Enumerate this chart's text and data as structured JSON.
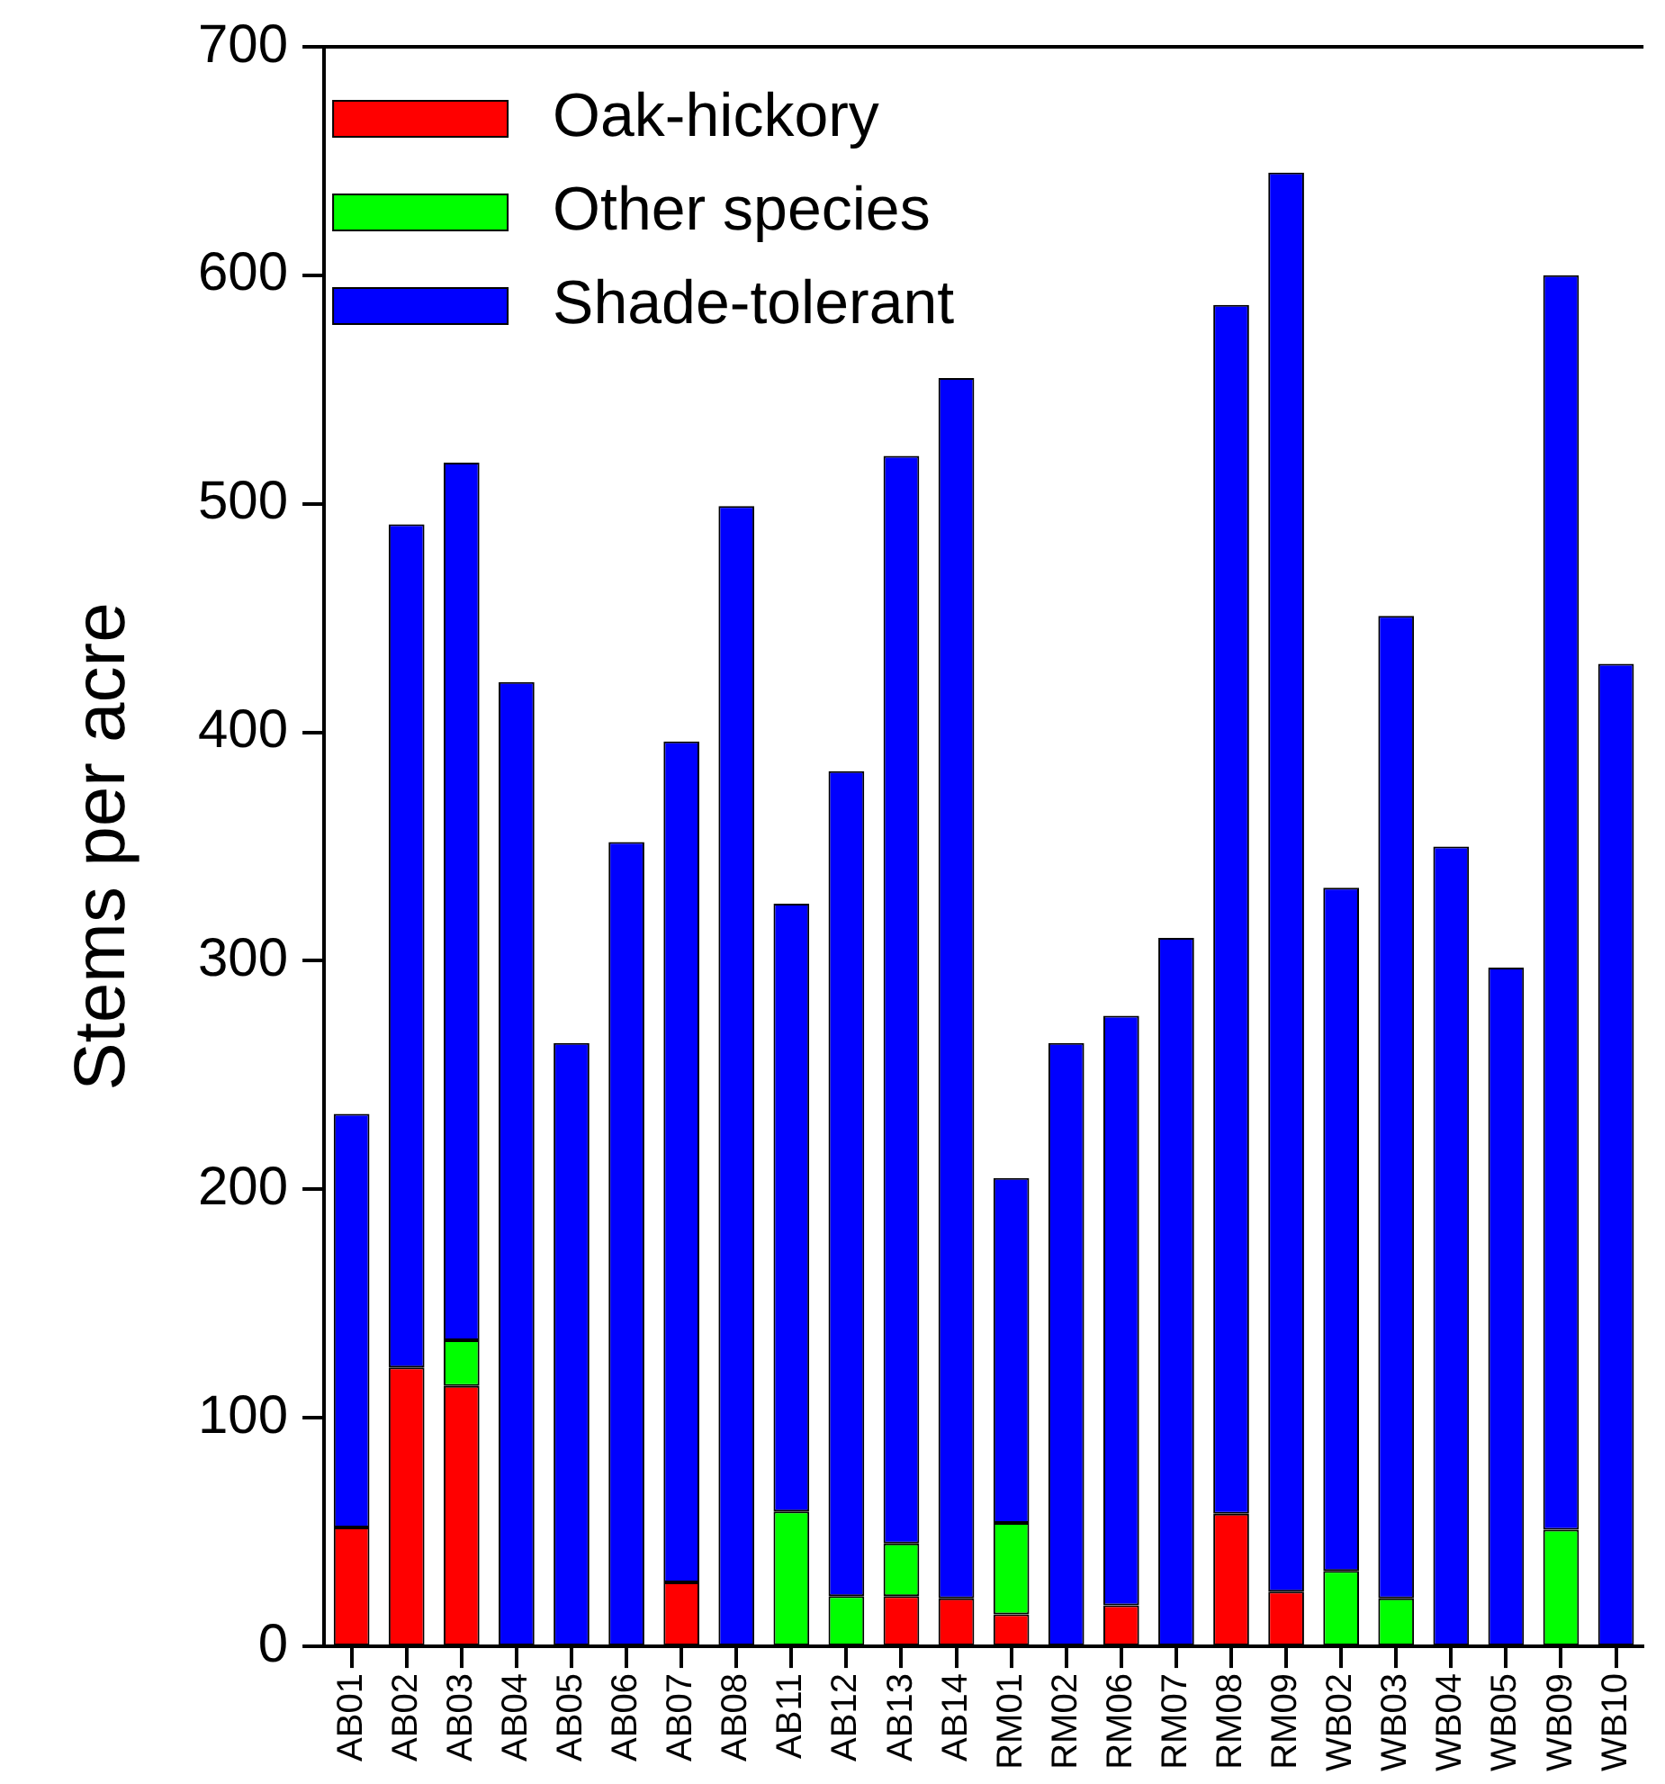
{
  "chart_data": {
    "type": "bar",
    "stacked": true,
    "ylabel": "Stems per acre",
    "categories": [
      "AB01",
      "AB02",
      "AB03",
      "AB04",
      "AB05",
      "AB06",
      "AB07",
      "AB08",
      "AB11",
      "AB12",
      "AB13",
      "AB14",
      "RM01",
      "RM02",
      "RM06",
      "RM07",
      "RM08",
      "RM09",
      "WB02",
      "WB03",
      "WB04",
      "WB05",
      "WB09",
      "WB10"
    ],
    "series": [
      {
        "name": "Oak-hickory",
        "color": "#ff0000",
        "values": [
          52,
          122,
          114,
          0,
          0,
          0,
          28,
          0,
          0,
          0,
          22,
          21,
          14,
          0,
          18,
          0,
          58,
          24,
          0,
          0,
          0,
          0,
          0,
          0
        ]
      },
      {
        "name": "Other species",
        "color": "#00ff00",
        "values": [
          0,
          0,
          20,
          0,
          0,
          0,
          0,
          0,
          59,
          22,
          23,
          0,
          40,
          0,
          0,
          0,
          0,
          0,
          33,
          21,
          0,
          0,
          51,
          0
        ]
      },
      {
        "name": "Shade-tolerant",
        "color": "#0000ff",
        "values": [
          181,
          369,
          384,
          422,
          264,
          352,
          368,
          499,
          266,
          361,
          476,
          534,
          151,
          264,
          258,
          310,
          529,
          621,
          299,
          430,
          350,
          297,
          549,
          430
        ]
      }
    ],
    "ylim": [
      0,
      700
    ],
    "yticks": [
      0,
      100,
      200,
      300,
      400,
      500,
      600,
      700
    ],
    "grid": false,
    "legend": "top left"
  }
}
